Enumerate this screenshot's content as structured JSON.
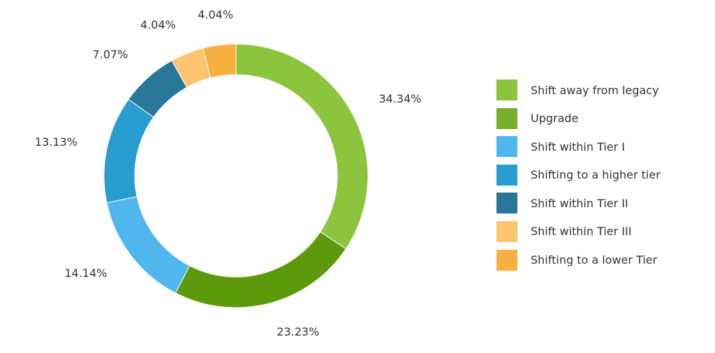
{
  "chart_data": {
    "type": "pie",
    "variant": "donut",
    "legend_position": "right",
    "series": [
      {
        "name": "Shift away from legacy",
        "value": 34.34,
        "label": "34.34%",
        "color": "#8cc43e"
      },
      {
        "name": "Upgrade",
        "value": 23.23,
        "label": "23.23%",
        "color": "#5c9a0b"
      },
      {
        "name": "Shift within Tier I",
        "value": 14.14,
        "label": "14.14%",
        "color": "#4fb7ee"
      },
      {
        "name": "Shifting to a higher tier",
        "value": 13.13,
        "label": "13.13%",
        "color": "#279ecf"
      },
      {
        "name": "Shift within Tier II",
        "value": 7.07,
        "label": "7.07%",
        "color": "#28769a"
      },
      {
        "name": "Shift within Tier III",
        "value": 4.04,
        "label": "4.04%",
        "color": "#fec46f"
      },
      {
        "name": "Shifting to a lower Tier",
        "value": 4.04,
        "label": "4.04%",
        "color": "#f8b03e"
      }
    ],
    "legend_colors": [
      "#8cc43e",
      "#78ae2a",
      "#4fb7ee",
      "#279ecf",
      "#28769a",
      "#fec46f",
      "#f8b03e"
    ]
  }
}
